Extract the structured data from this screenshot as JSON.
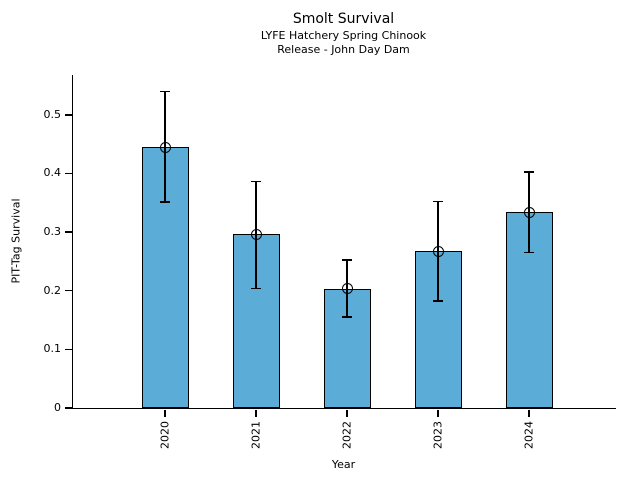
{
  "chart_data": {
    "type": "bar",
    "title": "Smolt Survival",
    "subtitle_lines": [
      "LYFE Hatchery Spring Chinook",
      "Release - John Day Dam"
    ],
    "xlabel": "Year",
    "ylabel": "PIT-Tag Survival",
    "categories": [
      "2020",
      "2021",
      "2022",
      "2023",
      "2024"
    ],
    "values": [
      0.445,
      0.296,
      0.203,
      0.267,
      0.334
    ],
    "error_low": [
      0.351,
      0.204,
      0.155,
      0.183,
      0.265
    ],
    "error_high": [
      0.54,
      0.386,
      0.252,
      0.352,
      0.403
    ],
    "yticks": [
      0,
      0.1,
      0.2,
      0.3,
      0.4,
      0.5
    ],
    "ytick_labels": [
      "0",
      "0.1",
      "0.2",
      "0.3",
      "0.4",
      "0.5"
    ],
    "ylim": [
      0,
      0.568
    ],
    "grid": false,
    "legend": "none",
    "marker": "open-circle",
    "colors": {
      "bar_fill": "#5BACD6",
      "bar_edge": "#000000",
      "error_bar": "#000000",
      "text": "#000000",
      "background": "#FFFFFF"
    }
  }
}
